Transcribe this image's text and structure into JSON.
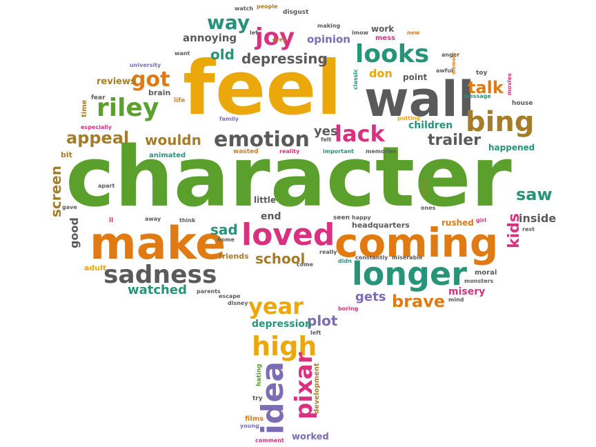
{
  "colors": {
    "green": "#5b9f2c",
    "orange": "#e07b14",
    "yellow": "#eaa80a",
    "teal": "#27947a",
    "magenta": "#d93180",
    "gray": "#5a5a5a",
    "brown": "#a57d2a",
    "purple": "#7b6cb4",
    "background": "#ffffff"
  },
  "words": [
    {
      "id": "character",
      "text": "character",
      "color": "green"
    },
    {
      "id": "feel",
      "text": "feel",
      "color": "yellow"
    },
    {
      "id": "wall",
      "text": "wall",
      "color": "gray"
    },
    {
      "id": "coming",
      "text": "coming",
      "color": "orange"
    },
    {
      "id": "make",
      "text": "make",
      "color": "orange"
    },
    {
      "id": "longer",
      "text": "longer",
      "color": "teal"
    },
    {
      "id": "loved",
      "text": "loved",
      "color": "magenta"
    },
    {
      "id": "looks",
      "text": "looks",
      "color": "teal"
    },
    {
      "id": "sadness",
      "text": "sadness",
      "color": "gray"
    },
    {
      "id": "riley",
      "text": "riley",
      "color": "green"
    },
    {
      "id": "high",
      "text": "high",
      "color": "yellow"
    },
    {
      "id": "bing",
      "text": "bing",
      "color": "brown"
    },
    {
      "id": "joy",
      "text": "joy",
      "color": "magenta"
    },
    {
      "id": "got",
      "text": "got",
      "color": "orange"
    },
    {
      "id": "emotion",
      "text": "emotion",
      "color": "gray"
    },
    {
      "id": "idea",
      "text": "idea",
      "color": "purple"
    },
    {
      "id": "pixar",
      "text": "pixar",
      "color": "magenta"
    },
    {
      "id": "way",
      "text": "way",
      "color": "teal"
    },
    {
      "id": "year",
      "text": "year",
      "color": "yellow"
    },
    {
      "id": "lack",
      "text": "lack",
      "color": "magenta"
    },
    {
      "id": "appeal",
      "text": "appeal",
      "color": "brown"
    },
    {
      "id": "talk",
      "text": "talk",
      "color": "orange"
    },
    {
      "id": "trailer",
      "text": "trailer",
      "color": "gray"
    },
    {
      "id": "saw",
      "text": "saw",
      "color": "teal"
    },
    {
      "id": "wouldn",
      "text": "wouldn",
      "color": "brown"
    },
    {
      "id": "school",
      "text": "school",
      "color": "brown"
    },
    {
      "id": "brave",
      "text": "brave",
      "color": "orange"
    },
    {
      "id": "screen",
      "text": "screen",
      "color": "brown"
    },
    {
      "id": "depressing",
      "text": "depressing",
      "color": "gray"
    },
    {
      "id": "watched",
      "text": "watched",
      "color": "teal"
    },
    {
      "id": "old",
      "text": "old",
      "color": "teal"
    },
    {
      "id": "kids",
      "text": "kids",
      "color": "magenta"
    },
    {
      "id": "plot",
      "text": "plot",
      "color": "purple"
    },
    {
      "id": "sad",
      "text": "sad",
      "color": "teal"
    },
    {
      "id": "gets",
      "text": "gets",
      "color": "purple"
    },
    {
      "id": "yes",
      "text": "yes",
      "color": "gray"
    },
    {
      "id": "annoying",
      "text": "annoying",
      "color": "gray"
    },
    {
      "id": "opinion",
      "text": "opinion",
      "color": "purple"
    },
    {
      "id": "children",
      "text": "children",
      "color": "teal"
    },
    {
      "id": "good",
      "text": "good",
      "color": "gray"
    },
    {
      "id": "inside",
      "text": "inside",
      "color": "gray"
    },
    {
      "id": "end",
      "text": "end",
      "color": "gray"
    },
    {
      "id": "don",
      "text": "don",
      "color": "yellow"
    },
    {
      "id": "depression",
      "text": "depression",
      "color": "teal"
    },
    {
      "id": "headquarters",
      "text": "headquarters",
      "color": "gray"
    },
    {
      "id": "reviews",
      "text": "reviews",
      "color": "brown"
    },
    {
      "id": "little",
      "text": "little",
      "color": "gray"
    },
    {
      "id": "work",
      "text": "work",
      "color": "gray"
    },
    {
      "id": "worked",
      "text": "worked",
      "color": "purple"
    },
    {
      "id": "misery",
      "text": "misery",
      "color": "magenta"
    },
    {
      "id": "point",
      "text": "point",
      "color": "gray"
    },
    {
      "id": "happened",
      "text": "happened",
      "color": "teal"
    },
    {
      "id": "rushed",
      "text": "rushed",
      "color": "orange"
    },
    {
      "id": "brain",
      "text": "brain",
      "color": "gray"
    },
    {
      "id": "friends",
      "text": "friends",
      "color": "brown"
    },
    {
      "id": "moral",
      "text": "moral",
      "color": "gray"
    },
    {
      "id": "adult",
      "text": "adult",
      "color": "yellow"
    },
    {
      "id": "bit",
      "text": "bit",
      "color": "brown"
    },
    {
      "id": "mess",
      "text": "mess",
      "color": "magenta"
    },
    {
      "id": "animated",
      "text": "animated",
      "color": "teal"
    },
    {
      "id": "development",
      "text": "development",
      "color": "brown"
    },
    {
      "id": "films",
      "text": "films",
      "color": "orange"
    },
    {
      "id": "hating",
      "text": "hating",
      "color": "green"
    },
    {
      "id": "story",
      "text": "story",
      "color": "brown"
    },
    {
      "id": "time",
      "text": "time",
      "color": "brown"
    },
    {
      "id": "fear",
      "text": "fear",
      "color": "gray"
    },
    {
      "id": "especially",
      "text": "especially",
      "color": "magenta"
    },
    {
      "id": "university",
      "text": "university",
      "color": "purple"
    },
    {
      "id": "want",
      "text": "want",
      "color": "gray"
    },
    {
      "id": "life",
      "text": "life",
      "color": "orange"
    },
    {
      "id": "family",
      "text": "family",
      "color": "purple"
    },
    {
      "id": "wasted",
      "text": "wasted",
      "color": "orange"
    },
    {
      "id": "reality",
      "text": "reality",
      "color": "magenta"
    },
    {
      "id": "important",
      "text": "important",
      "color": "teal"
    },
    {
      "id": "memories",
      "text": "memories",
      "color": "gray"
    },
    {
      "id": "felt",
      "text": "felt",
      "color": "gray"
    },
    {
      "id": "putting",
      "text": "putting",
      "color": "yellow"
    },
    {
      "id": "classic",
      "text": "classic",
      "color": "teal"
    },
    {
      "id": "message",
      "text": "message",
      "color": "teal"
    },
    {
      "id": "movies",
      "text": "movies",
      "color": "magenta"
    },
    {
      "id": "house",
      "text": "house",
      "color": "gray"
    },
    {
      "id": "toy",
      "text": "toy",
      "color": "gray"
    },
    {
      "id": "anger",
      "text": "anger",
      "color": "gray"
    },
    {
      "id": "awful",
      "text": "awful",
      "color": "gray"
    },
    {
      "id": "memory",
      "text": "memory",
      "color": "orange"
    },
    {
      "id": "imow",
      "text": "imow",
      "color": "gray"
    },
    {
      "id": "new",
      "text": "new",
      "color": "orange"
    },
    {
      "id": "making",
      "text": "making",
      "color": "gray"
    },
    {
      "id": "disgust",
      "text": "disgust",
      "color": "gray"
    },
    {
      "id": "watch",
      "text": "watch",
      "color": "gray"
    },
    {
      "id": "people",
      "text": "people",
      "color": "brown"
    },
    {
      "id": "let",
      "text": "let",
      "color": "gray"
    },
    {
      "id": "grey",
      "text": "grey",
      "color": "brown"
    },
    {
      "id": "apart",
      "text": "apart",
      "color": "gray"
    },
    {
      "id": "gave",
      "text": "gave",
      "color": "gray"
    },
    {
      "id": "ll",
      "text": "ll",
      "color": "magenta"
    },
    {
      "id": "away",
      "text": "away",
      "color": "gray"
    },
    {
      "id": "think",
      "text": "think",
      "color": "gray"
    },
    {
      "id": "home",
      "text": "home",
      "color": "gray"
    },
    {
      "id": "seen",
      "text": "seen",
      "color": "gray"
    },
    {
      "id": "happy",
      "text": "happy",
      "color": "gray"
    },
    {
      "id": "really",
      "text": "really",
      "color": "gray"
    },
    {
      "id": "constantly",
      "text": "constantly",
      "color": "gray"
    },
    {
      "id": "miserable",
      "text": "miserable",
      "color": "gray"
    },
    {
      "id": "didn",
      "text": "didn",
      "color": "teal"
    },
    {
      "id": "come",
      "text": "come",
      "color": "gray"
    },
    {
      "id": "ones",
      "text": "ones",
      "color": "gray"
    },
    {
      "id": "girl",
      "text": "girl",
      "color": "magenta"
    },
    {
      "id": "rest",
      "text": "rest",
      "color": "gray"
    },
    {
      "id": "monsters",
      "text": "monsters",
      "color": "gray"
    },
    {
      "id": "mind",
      "text": "mind",
      "color": "gray"
    },
    {
      "id": "parents",
      "text": "parents",
      "color": "gray"
    },
    {
      "id": "escape",
      "text": "escape",
      "color": "gray"
    },
    {
      "id": "disney",
      "text": "disney",
      "color": "gray"
    },
    {
      "id": "boring",
      "text": "boring",
      "color": "magenta"
    },
    {
      "id": "left",
      "text": "left",
      "color": "gray"
    },
    {
      "id": "try",
      "text": "try",
      "color": "gray"
    },
    {
      "id": "young",
      "text": "young",
      "color": "purple"
    },
    {
      "id": "comment",
      "text": "comment",
      "color": "magenta"
    }
  ]
}
